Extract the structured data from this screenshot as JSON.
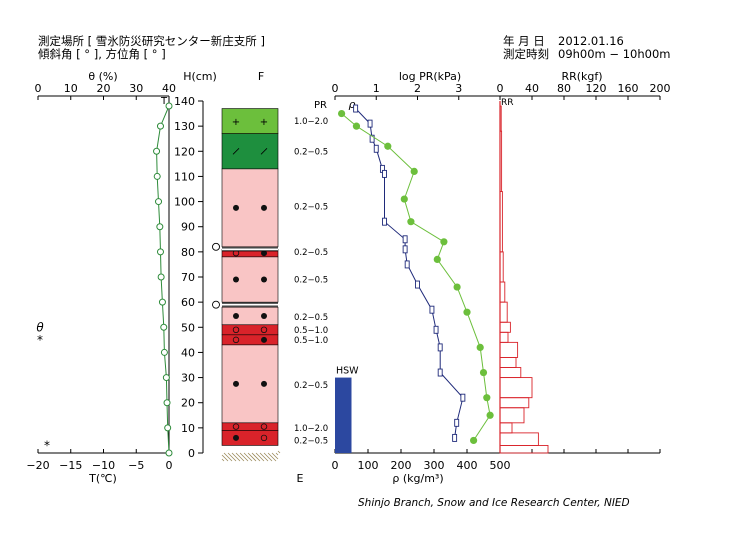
{
  "header": {
    "site_line": "測定場所 [ 雪氷防災研究センター新庄支所 ]",
    "angle_line": "傾斜角 [ ° ], 方位角 [ ° ]",
    "date_label": "年 月 日",
    "date_value": "2012.01.16",
    "time_label": "測定時刻",
    "time_value": "09h00m − 10h00m"
  },
  "credit": "Shinjo Branch, Snow and Ice Research Center, NIED",
  "colors": {
    "green_line": "#2e8b3a",
    "green_dot": "#6cbf3c",
    "navy": "#1f2a7a",
    "red": "#d9232a",
    "pink": "#f9c5c5",
    "hsw_blue": "#2c48a0",
    "light_green": "#6cbf3c",
    "dark_green": "#1e8f3e"
  },
  "chart_data": [
    {
      "id": "temperature_water",
      "type": "line",
      "top_axis": {
        "label": "θ (%)",
        "ticks": [
          "0",
          "10",
          "20",
          "30",
          "40"
        ],
        "range": [
          0,
          40
        ]
      },
      "bottom_axis": {
        "label": "T(℃)",
        "ticks": [
          "−20",
          "−15",
          "−10",
          "−5",
          "0"
        ],
        "range": [
          -20,
          0
        ]
      },
      "marker_label": "T",
      "series_T": {
        "h": [
          138,
          130,
          120,
          110,
          100,
          90,
          80,
          70,
          60,
          50,
          40,
          30,
          20,
          10,
          0
        ],
        "t": [
          0,
          -1.3,
          -1.9,
          -1.8,
          -1.6,
          -1.4,
          -1.3,
          -1.2,
          -1.0,
          -0.8,
          -0.7,
          -0.4,
          -0.3,
          -0.2,
          0
        ]
      },
      "left_annotations": [
        {
          "text": "θ",
          "h": 50
        },
        {
          "text": "*",
          "h": 45
        },
        {
          "text": "*",
          "h": 3
        }
      ]
    },
    {
      "id": "snow_profile",
      "type": "table",
      "height_label": "H(cm)",
      "column_label": "F",
      "bottom_label": "E",
      "height_ticks": [
        "0",
        "10",
        "20",
        "30",
        "40",
        "50",
        "60",
        "70",
        "80",
        "90",
        "100",
        "110",
        "120",
        "130",
        "140"
      ],
      "height_range": [
        0,
        140
      ],
      "layers": [
        {
          "bottom": 127,
          "top": 137,
          "fill": "light_green",
          "grain": "+"
        },
        {
          "bottom": 113,
          "top": 127,
          "fill": "dark_green",
          "grain": "⁄"
        },
        {
          "bottom": 82,
          "top": 113,
          "fill": "pink",
          "grain": "●"
        },
        {
          "bottom": 78,
          "top": 81,
          "fill": "red",
          "grain": "○●"
        },
        {
          "bottom": 60,
          "top": 78,
          "fill": "pink",
          "grain": "●"
        },
        {
          "bottom": 51,
          "top": 58,
          "fill": "pink",
          "grain": "●"
        },
        {
          "bottom": 47,
          "top": 51,
          "fill": "red",
          "grain": "○"
        },
        {
          "bottom": 43,
          "top": 47,
          "fill": "red",
          "grain": "○●"
        },
        {
          "bottom": 12,
          "top": 43,
          "fill": "pink",
          "grain": "●"
        },
        {
          "bottom": 9,
          "top": 12,
          "fill": "red",
          "grain": "○"
        },
        {
          "bottom": 3,
          "top": 9,
          "fill": "red",
          "grain": "●○"
        }
      ],
      "crusts": [
        81,
        59
      ],
      "water_marks": [
        82,
        59
      ],
      "hardness_labels": [
        {
          "text": "1.0−2.0",
          "h": 132
        },
        {
          "text": "0.2−0.5",
          "h": 120
        },
        {
          "text": "0.2−0.5",
          "h": 98
        },
        {
          "text": "0.2−0.5",
          "h": 80
        },
        {
          "text": "0.2−0.5",
          "h": 69
        },
        {
          "text": "0.2−0.5",
          "h": 54
        },
        {
          "text": "0.5−1.0",
          "h": 49
        },
        {
          "text": "0.5−1.0",
          "h": 45
        },
        {
          "text": "0.2−0.5",
          "h": 27
        },
        {
          "text": "1.0−2.0",
          "h": 10
        },
        {
          "text": "0.2−0.5",
          "h": 5
        }
      ]
    },
    {
      "id": "pr_density",
      "type": "line",
      "top_axis": {
        "label": "log PR(kPa)",
        "ticks": [
          "0",
          "1",
          "2",
          "3"
        ],
        "range": [
          0,
          4
        ]
      },
      "bottom_axis": {
        "label": "ρ (kg/m³)",
        "ticks": [
          "0",
          "100",
          "200",
          "300",
          "400",
          "500"
        ],
        "range": [
          0,
          500
        ]
      },
      "pr_label": "PR",
      "rho_label": "ρ",
      "density": {
        "h": [
          135,
          130,
          122,
          112,
          101,
          92,
          84,
          77,
          66,
          56,
          42,
          32,
          22,
          15,
          5
        ],
        "rho": [
          20,
          65,
          160,
          240,
          210,
          230,
          330,
          310,
          370,
          400,
          440,
          450,
          460,
          470,
          420
        ]
      },
      "log_pr": {
        "h": [
          137,
          131,
          125,
          121,
          113,
          111,
          92,
          85,
          81,
          75,
          67,
          57,
          49,
          42,
          32,
          22,
          12,
          6
        ],
        "v": [
          0.5,
          0.85,
          0.9,
          1.0,
          1.15,
          1.2,
          1.2,
          1.7,
          1.7,
          1.75,
          2.0,
          2.35,
          2.45,
          2.55,
          2.55,
          3.1,
          2.95,
          2.9
        ]
      },
      "hsw": {
        "label": "HSW",
        "value": 50,
        "h_top": 30
      }
    },
    {
      "id": "ram_resistance",
      "type": "bar",
      "top_axis": {
        "label": "RR(kgf)",
        "ticks": [
          "0",
          "40",
          "80",
          "120",
          "160",
          "200"
        ],
        "range": [
          0,
          200
        ]
      },
      "rr_label": "RR",
      "segments": [
        {
          "bottom": 128,
          "top": 138,
          "value": 1.5
        },
        {
          "bottom": 104,
          "top": 128,
          "value": 2
        },
        {
          "bottom": 80,
          "top": 104,
          "value": 3
        },
        {
          "bottom": 68,
          "top": 80,
          "value": 4
        },
        {
          "bottom": 60,
          "top": 68,
          "value": 6
        },
        {
          "bottom": 52,
          "top": 60,
          "value": 9
        },
        {
          "bottom": 48,
          "top": 52,
          "value": 13
        },
        {
          "bottom": 44,
          "top": 48,
          "value": 10
        },
        {
          "bottom": 38,
          "top": 44,
          "value": 22
        },
        {
          "bottom": 34,
          "top": 38,
          "value": 20
        },
        {
          "bottom": 30,
          "top": 34,
          "value": 26
        },
        {
          "bottom": 22,
          "top": 30,
          "value": 40
        },
        {
          "bottom": 18,
          "top": 22,
          "value": 36
        },
        {
          "bottom": 12,
          "top": 18,
          "value": 30
        },
        {
          "bottom": 8,
          "top": 12,
          "value": 15
        },
        {
          "bottom": 3,
          "top": 8,
          "value": 48
        },
        {
          "bottom": 0,
          "top": 3,
          "value": 60
        }
      ]
    }
  ]
}
